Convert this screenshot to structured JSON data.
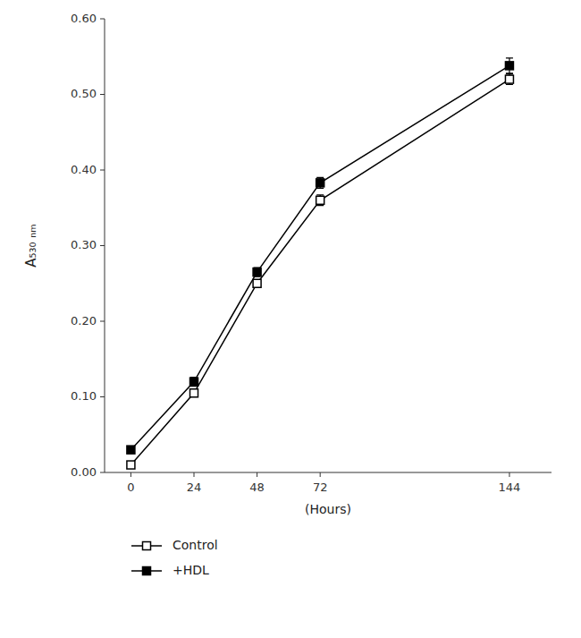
{
  "chart_data": {
    "type": "line",
    "xlabel": "(Hours)",
    "ylabel": "A₅₃₀ ₙₘ",
    "x": [
      0,
      24,
      48,
      72,
      144
    ],
    "xlim": [
      -10,
      160
    ],
    "xticks": [
      0,
      24,
      48,
      72,
      144
    ],
    "ylim": [
      0.0,
      0.6
    ],
    "yticks": [
      {
        "value": 0.0,
        "label": "0.00"
      },
      {
        "value": 0.1,
        "label": "0.10"
      },
      {
        "value": 0.2,
        "label": "0.20"
      },
      {
        "value": 0.3,
        "label": "0.30"
      },
      {
        "value": 0.4,
        "label": "0.40"
      },
      {
        "value": 0.5,
        "label": "0.50"
      },
      {
        "value": 0.6,
        "label": "0.60"
      }
    ],
    "grid": false,
    "legend": "bottom",
    "series": [
      {
        "name": "Control",
        "color": "#000000",
        "marker": "square-open",
        "values": [
          0.01,
          0.105,
          0.25,
          0.36,
          0.52
        ],
        "yerr": [
          0.004,
          0.005,
          0.005,
          0.007,
          0.007
        ]
      },
      {
        "name": "+HDL",
        "color": "#000000",
        "marker": "square",
        "values": [
          0.03,
          0.12,
          0.265,
          0.383,
          0.538
        ],
        "yerr": [
          0.004,
          0.006,
          0.006,
          0.007,
          0.01
        ]
      }
    ]
  }
}
